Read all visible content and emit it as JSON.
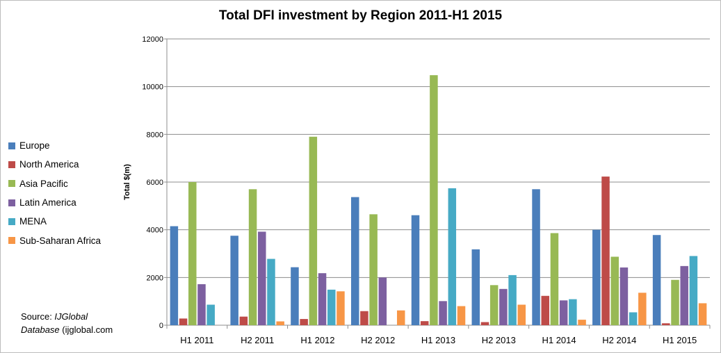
{
  "chart_data": {
    "type": "bar",
    "title": "Total DFI investment by Region 2011-H1 2015",
    "xlabel": "",
    "ylabel": "Total $(m)",
    "ylim": [
      0,
      12000
    ],
    "yticks": [
      "0",
      "2000",
      "4000",
      "6000",
      "8000",
      "10000",
      "12000"
    ],
    "yticks_values": [
      0,
      2000,
      4000,
      6000,
      8000,
      10000,
      12000
    ],
    "grid": "horizontal",
    "legend_position": "left",
    "categories": [
      "H1 2011",
      "H2 2011",
      "H1 2012",
      "H2 2012",
      "H1 2013",
      "H2 2013",
      "H1 2014",
      "H2 2014",
      "H1 2015"
    ],
    "series": [
      {
        "name": "Europe",
        "color": "#4a7ebb",
        "values": [
          4150,
          3750,
          2430,
          5370,
          4610,
          3180,
          5700,
          4000,
          3780
        ]
      },
      {
        "name": "North America",
        "color": "#be4b48",
        "values": [
          280,
          360,
          260,
          590,
          170,
          130,
          1230,
          6230,
          80
        ]
      },
      {
        "name": "Asia Pacific",
        "color": "#98b954",
        "values": [
          6000,
          5700,
          7900,
          4650,
          10480,
          1680,
          3860,
          2870,
          1900
        ]
      },
      {
        "name": "Latin America",
        "color": "#7d60a0",
        "values": [
          1720,
          3920,
          2180,
          2000,
          1010,
          1520,
          1040,
          2420,
          2480
        ]
      },
      {
        "name": "MENA",
        "color": "#46aac5",
        "values": [
          860,
          2780,
          1490,
          0,
          5740,
          2100,
          1090,
          540,
          2900
        ]
      },
      {
        "name": "Sub-Saharan Africa",
        "color": "#f79646",
        "values": [
          0,
          160,
          1420,
          620,
          800,
          860,
          230,
          1360,
          920
        ]
      }
    ]
  },
  "source": {
    "prefix": "Source: ",
    "italic_1": "IJGlobal",
    "italic_2": "Database",
    "suffix": " (ijglobal.com"
  }
}
